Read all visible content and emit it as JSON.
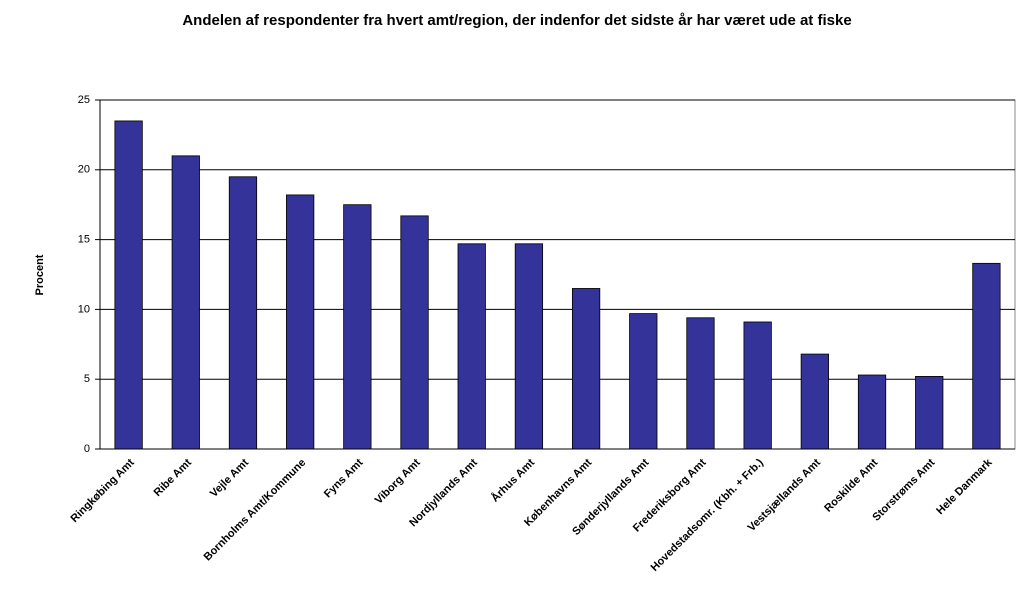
{
  "chart_data": {
    "type": "bar",
    "title": "Andelen af respondenter fra hvert amt/region, der indenfor det sidste år har været ude at fiske",
    "y_label": "Procent",
    "categories": [
      "Ringkøbing Amt",
      "Ribe Amt",
      "Vejle Amt",
      "Bornholms Amt/Kommune",
      "Fyns Amt",
      "Viborg Amt",
      "Nordjyllands Amt",
      "Århus Amt",
      "Københavns Amt",
      "Sønderjyllands Amt",
      "Frederiksborg Amt",
      "Hovedstadsomr. (Kbh. + Frb.)",
      "Vestsjællands Amt",
      "Roskilde Amt",
      "Storstrøms Amt",
      "Hele Danmark"
    ],
    "values": [
      23.5,
      21.0,
      19.5,
      18.2,
      17.5,
      16.7,
      14.7,
      14.7,
      11.5,
      9.7,
      9.4,
      9.1,
      6.8,
      5.3,
      5.2,
      13.3
    ],
    "color": "#333399",
    "ylim": [
      0,
      25
    ],
    "yticks": [
      0,
      5,
      10,
      15,
      20,
      25
    ],
    "grid": true
  }
}
